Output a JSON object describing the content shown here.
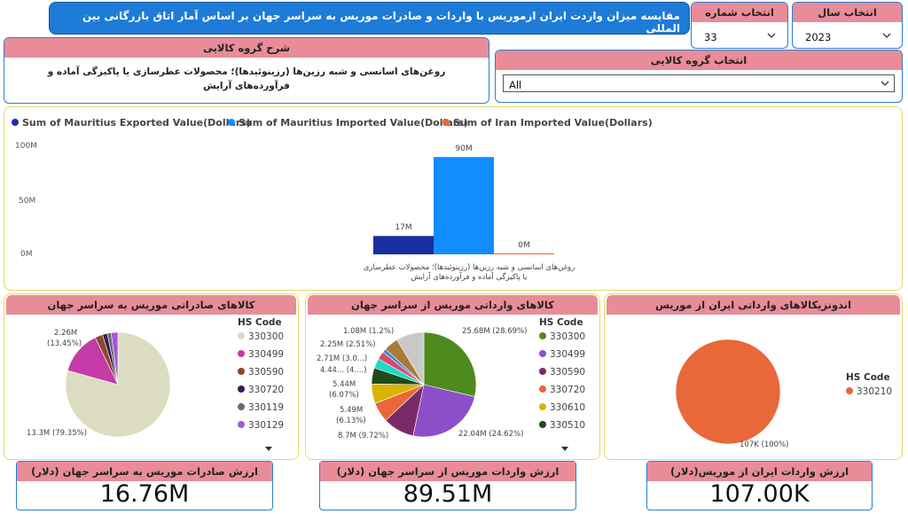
{
  "title": "مقایسه میزان واردت ایران ازموریس با واردات و صادرات موریس به سراسر جهان بر اساس آمار اتاق بازرگانی بین المللی",
  "slicers": {
    "year": {
      "label": "انتخاب سال",
      "value": "2023"
    },
    "chapter": {
      "label": "انتخاب شماره فصل",
      "value": "33"
    },
    "group": {
      "label": "انتخاب گروه کالایی",
      "value": "All"
    }
  },
  "description": {
    "label": "شرح گروه کالایی",
    "text": "روغن‌های اسانسی و شبه رزین‌ها (رزینوئیدها)؛ محصولات عطرسازی یا پاکیزگی آماده و فرآورده‌های آرایش"
  },
  "chart_data": [
    {
      "type": "bar",
      "title": "",
      "categories": [
        "روغن‌های اسانسی و شبه رزین‌ها (رزینوئیدها)؛ محصولات عطرسازی یا پاکیزگی آماده و فرآورده‌های آرایش"
      ],
      "series": [
        {
          "name": "Sum of Mauritius Exported Value(Dollars)",
          "values": [
            17
          ],
          "label": "17M",
          "color": "#1a2ea0"
        },
        {
          "name": "Sum of Mauritius Imported Value(Dollars)",
          "values": [
            90
          ],
          "label": "90M",
          "color": "#118dff"
        },
        {
          "name": "Sum of Iran Imported Value(Dollars)",
          "values": [
            0
          ],
          "label": "0M",
          "color": "#e8683a"
        }
      ],
      "yticks": [
        "0M",
        "50M",
        "100M"
      ],
      "ylim": [
        0,
        100
      ],
      "legend": "top-left"
    },
    {
      "type": "pie",
      "title": "کالاهای صادراتی موریس به سراسر جهان",
      "legend_title": "HS Code",
      "legend": [
        "330300",
        "330499",
        "330590",
        "330720",
        "330119",
        "330129"
      ],
      "slices": [
        {
          "code": "330300",
          "value": 13.3,
          "pct": 79.35,
          "color": "#dcdcc0"
        },
        {
          "code": "330499",
          "value": 2.26,
          "pct": 13.45,
          "color": "#c43aa6"
        },
        {
          "code": "330590",
          "value": 0.4,
          "pct": 2.4,
          "color": "#8a4a2a"
        },
        {
          "code": "330720",
          "value": 0.25,
          "pct": 1.5,
          "color": "#3a1a5a"
        },
        {
          "code": "330119",
          "value": 0.2,
          "pct": 1.2,
          "color": "#6a6a6a"
        },
        {
          "code": "330129",
          "value": 0.35,
          "pct": 2.1,
          "color": "#a458d8"
        }
      ],
      "labels": [
        "2.26M",
        "(13.45%)",
        "13.3M (79.35%)"
      ]
    },
    {
      "type": "pie",
      "title": "کالاهای وارداتی موریس از سراسر جهان",
      "legend_title": "HS Code",
      "legend": [
        "330300",
        "330499",
        "330590",
        "330720",
        "330610",
        "330510"
      ],
      "slices": [
        {
          "code": "330300",
          "value": 25.68,
          "pct": 28.69,
          "color": "#4e8a1e"
        },
        {
          "code": "330499",
          "value": 22.04,
          "pct": 24.62,
          "color": "#8c4fc8"
        },
        {
          "code": "330590",
          "value": 8.7,
          "pct": 9.72,
          "color": "#7a2a6a"
        },
        {
          "code": "330720",
          "value": 5.49,
          "pct": 6.13,
          "color": "#e8683a"
        },
        {
          "code": "330610",
          "value": 5.44,
          "pct": 6.07,
          "color": "#d8b400"
        },
        {
          "code": "330510",
          "value": 4.44,
          "pct": 4.96,
          "color": "#1e4a1a"
        },
        {
          "code": "other-1",
          "value": 2.71,
          "pct": 3.03,
          "color": "#1ed8c8"
        },
        {
          "code": "other-2",
          "value": 2.25,
          "pct": 2.51,
          "color": "#d84a6a"
        },
        {
          "code": "other-3",
          "value": 1.08,
          "pct": 1.2,
          "color": "#3a8ad8"
        },
        {
          "code": "other-4",
          "value": 4.0,
          "pct": 4.5,
          "color": "#a87a3a"
        },
        {
          "code": "other-5",
          "value": 7.7,
          "pct": 8.57,
          "color": "#c8c8c8"
        }
      ],
      "labels": [
        "1.08M (1.2%)",
        "2.25M (2.51%)",
        "2.71M (3.0...)",
        "4.44... (4....)",
        "5.44M",
        "(6.07%)",
        "5.49M",
        "(6.13%)",
        "8.7M (9.72%)",
        "22.04M (24.62%)",
        "25.68M (28.69%)"
      ]
    },
    {
      "type": "pie",
      "title": "اندونزیکالاهای وارداتی ایران از موریس",
      "legend_title": "HS Code",
      "legend": [
        "330210"
      ],
      "slices": [
        {
          "code": "330210",
          "value": 107,
          "pct": 100,
          "color": "#e8683a"
        }
      ],
      "labels": [
        "107K (100%)"
      ]
    }
  ],
  "kpis": [
    {
      "label": "ارزش صادرات موریس به سراسر جهان (دلار)",
      "value": "16.76M"
    },
    {
      "label": "ارزش واردات موریس از سراسر جهان (دلار)",
      "value": "89.51M"
    },
    {
      "label": "ارزش واردات ایران از موریس(دلار)",
      "value": "107.00K"
    }
  ]
}
